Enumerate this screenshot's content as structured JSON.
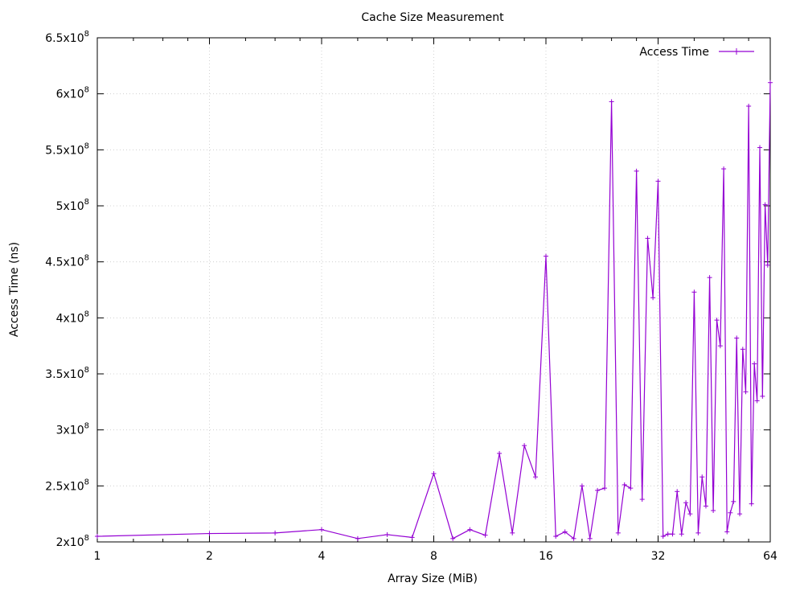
{
  "chart_data": {
    "type": "line",
    "title": "Cache Size Measurement",
    "xlabel": "Array Size (MiB)",
    "ylabel": "Access Time (ns)",
    "xscale": "log2",
    "xlim": [
      1,
      64
    ],
    "ylim": [
      200000000,
      650000000
    ],
    "grid": true,
    "legend_position": "top-right",
    "line_color": "#9400d3",
    "x_ticks": [
      {
        "value": 1,
        "label": "1"
      },
      {
        "value": 2,
        "label": "2"
      },
      {
        "value": 4,
        "label": "4"
      },
      {
        "value": 8,
        "label": "8"
      },
      {
        "value": 16,
        "label": "16"
      },
      {
        "value": 32,
        "label": "32"
      },
      {
        "value": 64,
        "label": "64"
      }
    ],
    "y_ticks": [
      {
        "value": 200000000,
        "base": "2x10",
        "exp": "8"
      },
      {
        "value": 250000000,
        "base": "2.5x10",
        "exp": "8"
      },
      {
        "value": 300000000,
        "base": "3x10",
        "exp": "8"
      },
      {
        "value": 350000000,
        "base": "3.5x10",
        "exp": "8"
      },
      {
        "value": 400000000,
        "base": "4x10",
        "exp": "8"
      },
      {
        "value": 450000000,
        "base": "4.5x10",
        "exp": "8"
      },
      {
        "value": 500000000,
        "base": "5x10",
        "exp": "8"
      },
      {
        "value": 550000000,
        "base": "5.5x10",
        "exp": "8"
      },
      {
        "value": 600000000,
        "base": "6x10",
        "exp": "8"
      },
      {
        "value": 650000000,
        "base": "6.5x10",
        "exp": "8"
      }
    ],
    "series": [
      {
        "name": "Access Time",
        "x": [
          1,
          2,
          3,
          4,
          5,
          6,
          7,
          8,
          9,
          10,
          11,
          12,
          13,
          14,
          15,
          16,
          17,
          18,
          19,
          20,
          21,
          22,
          23,
          24,
          25,
          26,
          27,
          28,
          29,
          30,
          31,
          32,
          33,
          34,
          35,
          36,
          37,
          38,
          39,
          40,
          41,
          42,
          43,
          44,
          45,
          46,
          47,
          48,
          49,
          50,
          51,
          52,
          53,
          54,
          55,
          56,
          57,
          58,
          59,
          60,
          61,
          62,
          63,
          64
        ],
        "y": [
          205000000,
          207500000,
          208000000,
          211000000,
          203000000,
          206500000,
          204000000,
          261000000,
          203000000,
          211000000,
          206000000,
          279000000,
          208000000,
          286000000,
          258000000,
          455000000,
          205000000,
          209000000,
          203000000,
          250000000,
          203000000,
          246000000,
          248000000,
          593000000,
          208000000,
          251000000,
          248000000,
          531000000,
          238000000,
          471000000,
          418000000,
          522000000,
          205000000,
          207000000,
          207000000,
          245000000,
          207000000,
          235000000,
          225000000,
          423000000,
          208000000,
          258000000,
          232000000,
          436000000,
          228000000,
          398000000,
          375000000,
          533000000,
          209000000,
          226000000,
          236000000,
          382000000,
          225000000,
          372000000,
          334000000,
          589000000,
          234000000,
          359000000,
          326000000,
          552000000,
          330000000,
          501000000,
          447000000,
          610000000
        ]
      }
    ]
  }
}
